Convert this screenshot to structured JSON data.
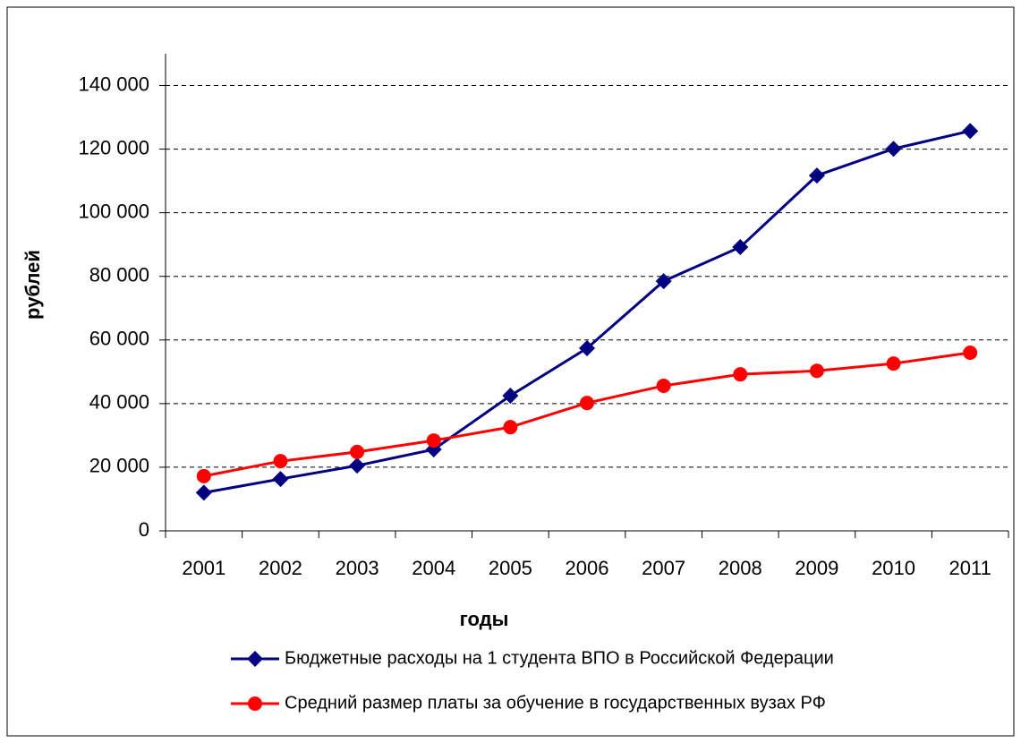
{
  "chart_data": {
    "type": "line",
    "x_label": "годы",
    "y_label": "рублей",
    "categories": [
      "2001",
      "2002",
      "2003",
      "2004",
      "2005",
      "2006",
      "2007",
      "2008",
      "2009",
      "2010",
      "2011"
    ],
    "series": [
      {
        "name": "Бюджетные расходы на 1 студента ВПО в Российской Федерации",
        "color": "#000080",
        "marker": "diamond",
        "values": [
          12000,
          16300,
          20500,
          25600,
          42500,
          57400,
          78500,
          89200,
          111700,
          120100,
          125700
        ]
      },
      {
        "name": "Средний размер платы за обучение в государственных вузах РФ",
        "color": "#ff0000",
        "marker": "circle",
        "values": [
          17200,
          21900,
          24800,
          28400,
          32600,
          40200,
          45600,
          49200,
          50300,
          52600,
          56000
        ]
      }
    ],
    "ylim": [
      0,
      150000
    ],
    "yticks": [
      0,
      {
        "value": 20000,
        "label": "20 000"
      },
      {
        "value": 40000,
        "label": "40 000"
      },
      {
        "value": 60000,
        "label": "60 000"
      },
      {
        "value": 80000,
        "label": "80 000"
      },
      {
        "value": 100000,
        "label": "100 000"
      },
      {
        "value": 120000,
        "label": "120 000"
      },
      {
        "value": 140000,
        "label": "140 000"
      }
    ],
    "grid": true,
    "legend": "bottom"
  }
}
